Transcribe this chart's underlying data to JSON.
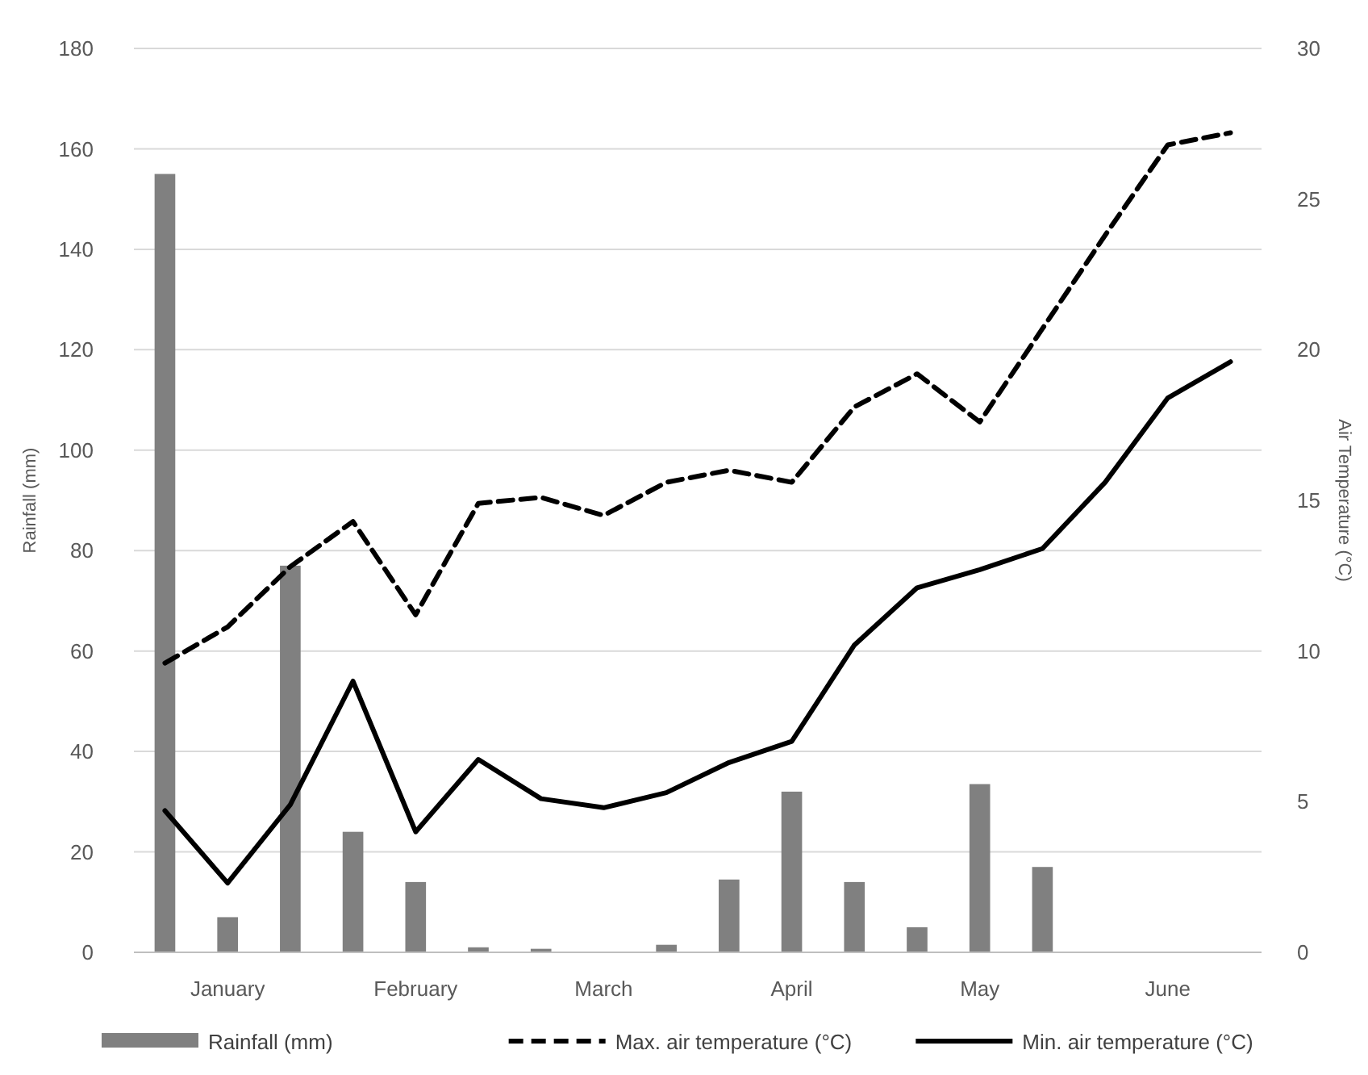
{
  "chart_data": {
    "type": "bar",
    "ylabel": "Rainfall (mm)",
    "y2label": "Air Temperature (°C)",
    "categories": [
      null,
      "January",
      null,
      null,
      "February",
      null,
      null,
      "March",
      null,
      null,
      "April",
      null,
      null,
      "May",
      null,
      null,
      "June",
      null
    ],
    "ylim": [
      0,
      180
    ],
    "yticks": [
      0,
      20,
      40,
      60,
      80,
      100,
      120,
      140,
      160,
      180
    ],
    "y2lim": [
      0,
      30
    ],
    "y2ticks": [
      0,
      5,
      10,
      15,
      20,
      25,
      30
    ],
    "grid": "y",
    "legend": "bottom",
    "series": [
      {
        "name": "Rainfall (mm)",
        "color": "#808080",
        "values": [
          155,
          7,
          77,
          24,
          14,
          1,
          0.7,
          0,
          1.5,
          14.5,
          32,
          14,
          5,
          33.5,
          17,
          0,
          0,
          0
        ]
      },
      {
        "name": "Max. air temperature (°C)",
        "type": "line",
        "axis": "y2",
        "line_style": "dashed",
        "color": "#000000",
        "values": [
          9.6,
          10.8,
          12.8,
          14.3,
          11.2,
          14.9,
          15.1,
          14.5,
          15.6,
          16.0,
          15.6,
          18.1,
          19.2,
          17.6,
          20.7,
          23.8,
          26.8,
          27.2
        ]
      },
      {
        "name": "Min. air temperature (°C)",
        "type": "line",
        "axis": "y2",
        "line_style": "solid",
        "color": "#000000",
        "values": [
          4.7,
          2.3,
          4.9,
          9.0,
          4.0,
          6.4,
          5.1,
          4.8,
          5.3,
          6.3,
          7.0,
          10.2,
          12.1,
          12.7,
          13.4,
          15.6,
          18.4,
          19.6
        ]
      }
    ]
  }
}
